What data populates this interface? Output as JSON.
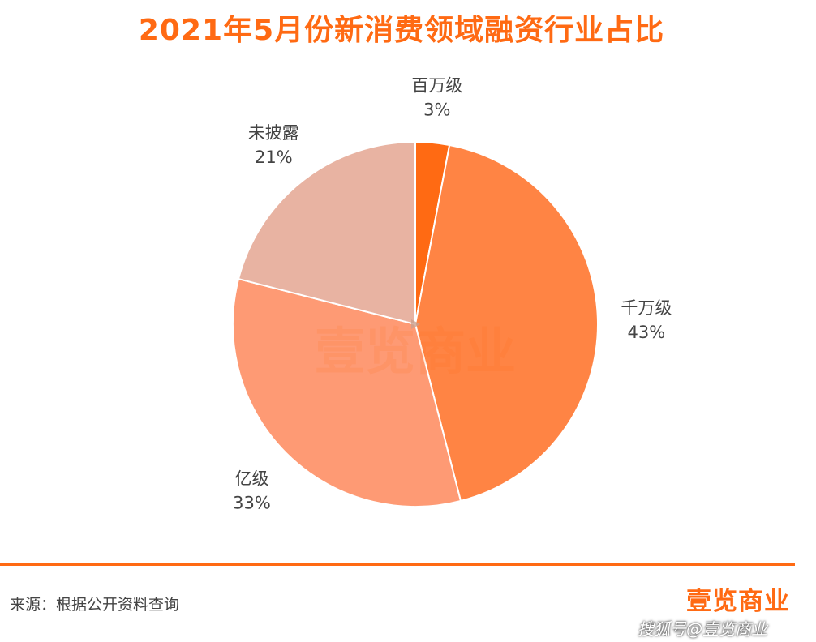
{
  "chart_data": {
    "type": "pie",
    "title": "2021年5月份新消费领域融资行业占比",
    "slices": [
      {
        "label": "百万级",
        "value": 3,
        "value_label": "3%",
        "color": "#ff6a13"
      },
      {
        "label": "千万级",
        "value": 43,
        "value_label": "43%",
        "color": "#ff8444"
      },
      {
        "label": "亿级",
        "value": 33,
        "value_label": "33%",
        "color": "#fe9a74"
      },
      {
        "label": "未披露",
        "value": 21,
        "value_label": "21%",
        "color": "#e8b3a2"
      }
    ],
    "watermark": "壹览商业"
  },
  "footer": {
    "source": "来源：根据公开资料查询",
    "brand": "壹览商业",
    "credit": "搜狐号@壹览商业"
  }
}
